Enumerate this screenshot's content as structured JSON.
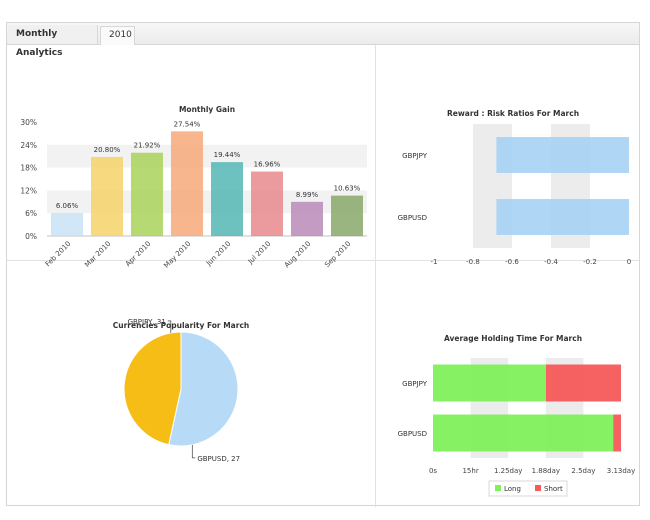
{
  "tabs": [
    {
      "label": "Monthly Analytics",
      "active": true
    },
    {
      "label": "2010",
      "active": false
    }
  ],
  "chart_data": [
    {
      "type": "bar",
      "title": "Monthly Gain",
      "categories": [
        "Feb 2010",
        "Mar 2010",
        "Apr 2010",
        "May 2010",
        "Jun 2010",
        "Jul 2010",
        "Aug 2010",
        "Sep 2010"
      ],
      "values": [
        6.06,
        20.8,
        21.92,
        27.54,
        19.44,
        16.96,
        8.99,
        10.63
      ],
      "value_labels": [
        "6.06%",
        "20.80%",
        "21.92%",
        "27.54%",
        "19.44%",
        "16.96%",
        "8.99%",
        "10.63%"
      ],
      "colors": [
        "#c9e3f6",
        "#f6d36a",
        "#a9d25a",
        "#f7a97a",
        "#53b7b4",
        "#e88a8d",
        "#b88ab8",
        "#8aa86a"
      ],
      "ylim": [
        0,
        30
      ],
      "yticks": [
        "0%",
        "6%",
        "12%",
        "18%",
        "24%",
        "30%"
      ],
      "grid": true
    },
    {
      "type": "bar",
      "title": "Reward : Risk Ratios For March",
      "orientation": "horizontal",
      "categories": [
        "GBPJPY",
        "GBPUSD"
      ],
      "values": [
        -0.68,
        -0.68
      ],
      "colors": [
        "#a7d2f4",
        "#a7d2f4"
      ],
      "xlim": [
        -1,
        0
      ],
      "xticks": [
        "-1",
        "-0.8",
        "-0.6",
        "-0.4",
        "-0.2",
        "0"
      ]
    },
    {
      "type": "pie",
      "title": "Currencies Popularity For March",
      "slices": [
        {
          "label": "GBPJPY, 31",
          "value": 31,
          "color": "#b7dbf7"
        },
        {
          "label": "GBPUSD, 27",
          "value": 27,
          "color": "#f6bd16"
        }
      ]
    },
    {
      "type": "bar",
      "title": "Average Holding Time For March",
      "orientation": "horizontal",
      "stacked": true,
      "categories": [
        "GBPJPY",
        "GBPUSD"
      ],
      "series": [
        {
          "name": "Long",
          "color": "#80f15b",
          "values": [
            1.88,
            3.0
          ]
        },
        {
          "name": "Short",
          "color": "#f65a5a",
          "values": [
            1.25,
            0.13
          ]
        }
      ],
      "xlim": [
        0,
        3.13
      ],
      "xticks": [
        "0s",
        "15hr",
        "1.25day",
        "1.88day",
        "2.5day",
        "3.13day"
      ],
      "legend": "bottom-center"
    }
  ]
}
